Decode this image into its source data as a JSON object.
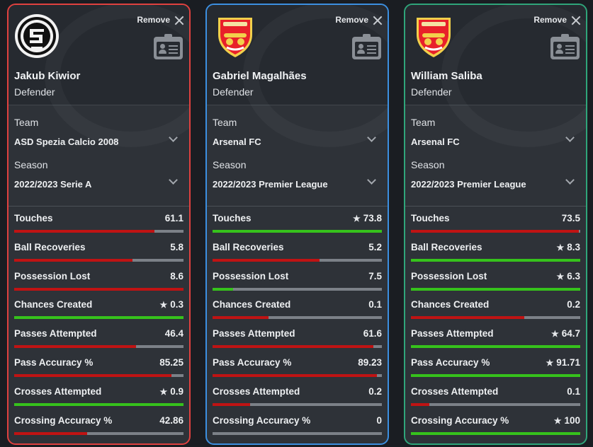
{
  "labels": {
    "remove": "Remove",
    "team": "Team",
    "season": "Season"
  },
  "colors": {
    "good": "#36c21c",
    "bad": "#c01313",
    "track": "#7c8188"
  },
  "players": [
    {
      "name": "Jakub Kiwior",
      "position": "Defender",
      "team": "ASD Spezia Calcio 2008",
      "season": "2022/2023 Serie A",
      "border_color": "#e0413f",
      "logo": "spezia-crest-icon",
      "stats": [
        {
          "label": "Touches",
          "value": "61.1",
          "star": false,
          "fill": 0.83,
          "status": "bad"
        },
        {
          "label": "Ball Recoveries",
          "value": "5.8",
          "star": false,
          "fill": 0.7,
          "status": "bad"
        },
        {
          "label": "Possession Lost",
          "value": "8.6",
          "star": false,
          "fill": 1.0,
          "status": "bad"
        },
        {
          "label": "Chances Created",
          "value": "0.3",
          "star": true,
          "fill": 1.0,
          "status": "good"
        },
        {
          "label": "Passes Attempted",
          "value": "46.4",
          "star": false,
          "fill": 0.72,
          "status": "bad"
        },
        {
          "label": "Pass Accuracy %",
          "value": "85.25",
          "star": false,
          "fill": 0.93,
          "status": "bad"
        },
        {
          "label": "Crosses Attempted",
          "value": "0.9",
          "star": true,
          "fill": 1.0,
          "status": "good"
        },
        {
          "label": "Crossing Accuracy %",
          "value": "42.86",
          "star": false,
          "fill": 0.43,
          "status": "bad"
        }
      ]
    },
    {
      "name": "Gabriel Magalhães",
      "position": "Defender",
      "team": "Arsenal FC",
      "season": "2022/2023 Premier League",
      "border_color": "#3c8fe0",
      "logo": "arsenal-crest-icon",
      "stats": [
        {
          "label": "Touches",
          "value": "73.8",
          "star": true,
          "fill": 1.0,
          "status": "good"
        },
        {
          "label": "Ball Recoveries",
          "value": "5.2",
          "star": false,
          "fill": 0.63,
          "status": "bad"
        },
        {
          "label": "Possession Lost",
          "value": "7.5",
          "star": false,
          "fill": 0.12,
          "status": "good"
        },
        {
          "label": "Chances Created",
          "value": "0.1",
          "star": false,
          "fill": 0.33,
          "status": "bad"
        },
        {
          "label": "Passes Attempted",
          "value": "61.6",
          "star": false,
          "fill": 0.95,
          "status": "bad"
        },
        {
          "label": "Pass Accuracy %",
          "value": "89.23",
          "star": false,
          "fill": 0.97,
          "status": "bad"
        },
        {
          "label": "Crosses Attempted",
          "value": "0.2",
          "star": false,
          "fill": 0.22,
          "status": "bad"
        },
        {
          "label": "Crossing Accuracy %",
          "value": "0",
          "star": false,
          "fill": 0.0,
          "status": "bad"
        }
      ]
    },
    {
      "name": "William Saliba",
      "position": "Defender",
      "team": "Arsenal FC",
      "season": "2022/2023 Premier League",
      "border_color": "#2fa57a",
      "logo": "arsenal-crest-icon",
      "stats": [
        {
          "label": "Touches",
          "value": "73.5",
          "star": false,
          "fill": 0.99,
          "status": "bad"
        },
        {
          "label": "Ball Recoveries",
          "value": "8.3",
          "star": true,
          "fill": 1.0,
          "status": "good"
        },
        {
          "label": "Possession Lost",
          "value": "6.3",
          "star": true,
          "fill": 1.0,
          "status": "good"
        },
        {
          "label": "Chances Created",
          "value": "0.2",
          "star": false,
          "fill": 0.67,
          "status": "bad"
        },
        {
          "label": "Passes Attempted",
          "value": "64.7",
          "star": true,
          "fill": 1.0,
          "status": "good"
        },
        {
          "label": "Pass Accuracy %",
          "value": "91.71",
          "star": true,
          "fill": 1.0,
          "status": "good"
        },
        {
          "label": "Crosses Attempted",
          "value": "0.1",
          "star": false,
          "fill": 0.11,
          "status": "bad"
        },
        {
          "label": "Crossing Accuracy %",
          "value": "100",
          "star": true,
          "fill": 1.0,
          "status": "good"
        }
      ]
    }
  ]
}
